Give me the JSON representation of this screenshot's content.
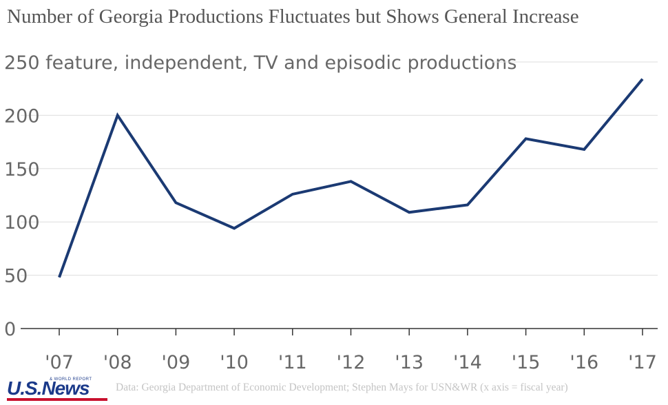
{
  "title": "Number of Georgia Productions Fluctuates but Shows General Increase",
  "source": "Data: Georgia Department of Economic Development; Stephen Mays for USN&WR (x axis = fiscal year)",
  "logo": {
    "main": "U.S.News",
    "sub": "& WORLD REPORT"
  },
  "colors": {
    "line": "#1b3a73",
    "grid": "#dddddd",
    "axis": "#333333",
    "text": "#676767",
    "logo": "#1b3a8a",
    "logo_bar": "#c8102e"
  },
  "chart_data": {
    "type": "line",
    "ylabel": "feature, independent, TV and episodic productions",
    "x": [
      "'07",
      "'08",
      "'09",
      "'10",
      "'11",
      "'12",
      "'13",
      "'14",
      "'15",
      "'16",
      "'17"
    ],
    "series": [
      {
        "values": [
          48,
          200,
          118,
          94,
          126,
          138,
          109,
          116,
          178,
          168,
          234
        ]
      }
    ],
    "yticks": [
      0,
      50,
      100,
      150,
      200,
      250
    ],
    "ylim": [
      0,
      250
    ],
    "grid": true
  }
}
